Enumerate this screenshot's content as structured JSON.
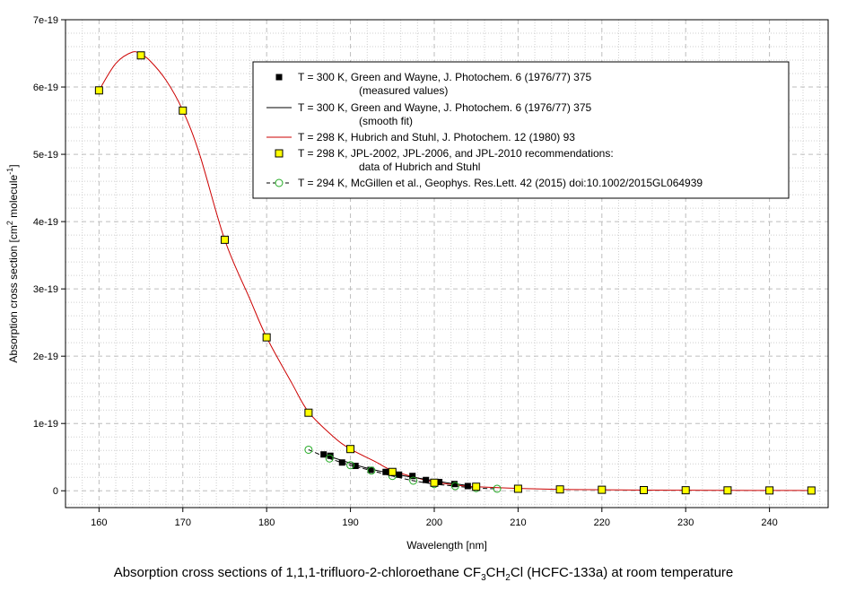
{
  "chart_data": {
    "type": "scatter",
    "xlabel": "Wavelength [nm]",
    "ylabel_main": "Absorption cross section [cm",
    "ylabel_sup1": "2",
    "ylabel_mid": " molecule",
    "ylabel_sup2": "-1",
    "ylabel_end": "]",
    "xlim": [
      156,
      247
    ],
    "ylim": [
      -0.25,
      7
    ],
    "y_scale_note": "values in units of 1e-19 cm2 molecule-1",
    "x_ticks": [
      160,
      170,
      180,
      190,
      200,
      210,
      220,
      230,
      240
    ],
    "x_tick_labels": [
      "160",
      "170",
      "180",
      "190",
      "200",
      "210",
      "220",
      "230",
      "240"
    ],
    "y_ticks": [
      0,
      1,
      2,
      3,
      4,
      5,
      6,
      7
    ],
    "y_tick_labels": [
      "0",
      "1e-19",
      "2e-19",
      "3e-19",
      "4e-19",
      "5e-19",
      "6e-19",
      "7e-19"
    ],
    "grid": true,
    "legend_position": "top-right",
    "legend": [
      {
        "line1": "T = 300 K, Green and Wayne, J. Photochem. 6 (1976/77) 375",
        "line2": "(measured values)"
      },
      {
        "line1": "T = 300 K, Green and Wayne, J. Photochem. 6 (1976/77) 375",
        "line2": "(smooth fit)"
      },
      {
        "line1": "T = 298 K, Hubrich and Stuhl, J. Photochem. 12 (1980) 93",
        "line2": ""
      },
      {
        "line1": "T = 298 K, JPL-2002, JPL-2006, and JPL-2010 recommendations:",
        "line2": "data of Hubrich and Stuhl"
      },
      {
        "line1": "T = 294 K, McGillen et al., Geophys. Res.Lett. 42 (2015) doi:10.1002/2015GL064939",
        "line2": ""
      }
    ],
    "series": [
      {
        "style": "black-square",
        "color": "#000000",
        "x": [
          186.8,
          187.6,
          189.0,
          190.6,
          192.4,
          194.2,
          195.8,
          197.4,
          199.0,
          200.6,
          202.4,
          204.0
        ],
        "y": [
          0.54,
          0.52,
          0.42,
          0.37,
          0.31,
          0.28,
          0.24,
          0.22,
          0.16,
          0.13,
          0.1,
          0.07
        ]
      },
      {
        "style": "black-line",
        "color": "#000000",
        "x": [
          186.8,
          188.0,
          189.5,
          191.0,
          192.5,
          194.0,
          196.0,
          198.0,
          200.0,
          202.0,
          204.0
        ],
        "y": [
          0.54,
          0.49,
          0.43,
          0.37,
          0.32,
          0.28,
          0.23,
          0.19,
          0.15,
          0.11,
          0.08
        ]
      },
      {
        "style": "red-line",
        "color": "#cc0000",
        "x": [
          160,
          162,
          164,
          165,
          166,
          168,
          170,
          172,
          175,
          178,
          180,
          183,
          185,
          188,
          190,
          193,
          195,
          198,
          200,
          203,
          205,
          210,
          215,
          220,
          225,
          230,
          235,
          240,
          245
        ],
        "y": [
          5.95,
          6.35,
          6.52,
          6.48,
          6.4,
          6.1,
          5.65,
          5.0,
          3.73,
          2.85,
          2.28,
          1.6,
          1.17,
          0.8,
          0.62,
          0.43,
          0.3,
          0.19,
          0.13,
          0.08,
          0.06,
          0.035,
          0.02,
          0.015,
          0.01,
          0.008,
          0.006,
          0.005,
          0.004
        ]
      },
      {
        "style": "yellow-square",
        "color": "#ffff00",
        "x": [
          160,
          165,
          170,
          175,
          180,
          185,
          190,
          195,
          200,
          205,
          210,
          215,
          220,
          225,
          230,
          235,
          240,
          245
        ],
        "y": [
          5.95,
          6.47,
          5.65,
          3.73,
          2.28,
          1.16,
          0.62,
          0.28,
          0.12,
          0.06,
          0.03,
          0.02,
          0.015,
          0.01,
          0.008,
          0.006,
          0.005,
          0.004
        ]
      },
      {
        "style": "green-circle-dashed",
        "color": "#22aa22",
        "x": [
          185.0,
          187.5,
          190.0,
          192.5,
          195.0,
          197.5,
          200.0,
          202.5,
          205.0,
          207.5
        ],
        "y": [
          0.61,
          0.48,
          0.38,
          0.3,
          0.22,
          0.15,
          0.1,
          0.07,
          0.04,
          0.03
        ]
      }
    ]
  },
  "caption": {
    "part1": "Absorption cross sections of 1,1,1-trifluoro-2-chloroethane CF",
    "sub1": "3",
    "part2": "CH",
    "sub2": "2",
    "part3": "Cl (HCFC-133a) at room temperature"
  }
}
